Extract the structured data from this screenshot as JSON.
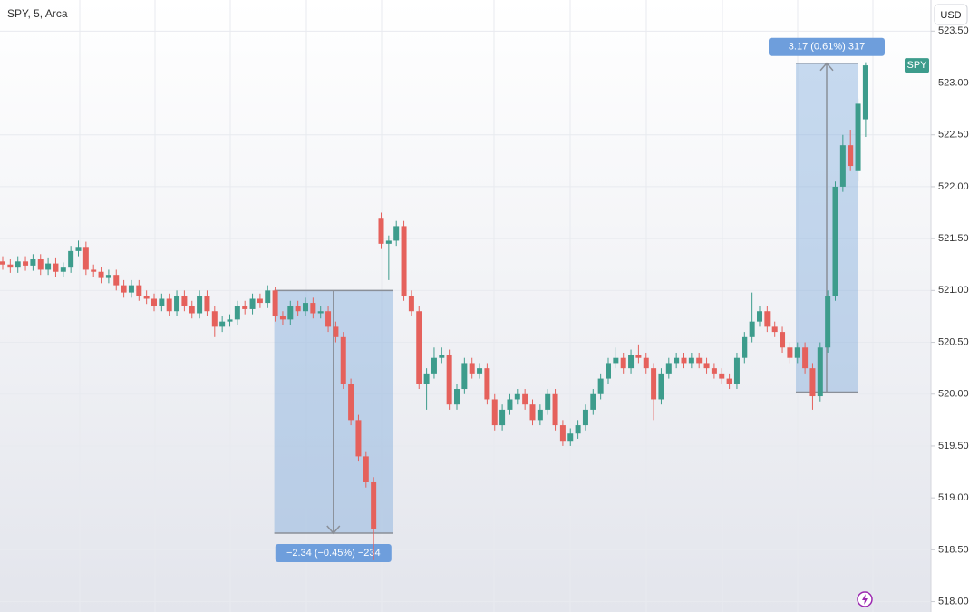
{
  "chart_data": {
    "type": "candlestick",
    "title": "SPY, 5, Arca",
    "currency": "USD",
    "series": [
      {
        "name": "SPY",
        "up_color": "#3d9c8c",
        "down_color": "#e5615c",
        "open": [
          521.28,
          521.25,
          521.22,
          521.28,
          521.24,
          521.3,
          521.2,
          521.26,
          521.18,
          521.22,
          521.38,
          521.42,
          521.2,
          521.18,
          521.12,
          521.15,
          521.05,
          520.98,
          521.05,
          520.95,
          520.92,
          520.85,
          520.92,
          520.8,
          520.95,
          520.85,
          520.78,
          520.95,
          520.8,
          520.65,
          520.7,
          520.72,
          520.85,
          520.82,
          520.92,
          520.88,
          521.0,
          520.75,
          520.72,
          520.85,
          520.8,
          520.88,
          520.78,
          520.8,
          520.65,
          520.55,
          520.1,
          519.75,
          519.4,
          519.15,
          521.7,
          521.45,
          521.48,
          521.62,
          520.95,
          520.8,
          520.1,
          520.2,
          520.35,
          520.38,
          519.9,
          520.05,
          520.3,
          520.2,
          520.25,
          519.95,
          519.7,
          519.85,
          519.95,
          520.0,
          519.9,
          519.75,
          519.85,
          520.0,
          519.7,
          519.55,
          519.62,
          519.7,
          519.85,
          520.0,
          520.15,
          520.3,
          520.35,
          520.25,
          520.38,
          520.35,
          520.25,
          519.95,
          520.2,
          520.3,
          520.35,
          520.3,
          520.35,
          520.3,
          520.25,
          520.2,
          520.15,
          520.1,
          520.35,
          520.55,
          520.7,
          520.8,
          520.65,
          520.6,
          520.45,
          520.35,
          520.45,
          520.25,
          519.98,
          520.45,
          520.95,
          522.0,
          522.4,
          522.15,
          522.65
        ],
        "high": [
          521.33,
          521.3,
          521.33,
          521.33,
          521.35,
          521.35,
          521.31,
          521.31,
          521.27,
          521.43,
          521.48,
          521.47,
          521.25,
          521.23,
          521.2,
          521.2,
          521.1,
          521.1,
          521.1,
          521.0,
          520.97,
          520.97,
          520.97,
          521.0,
          521.0,
          520.9,
          521.0,
          521.0,
          520.85,
          520.75,
          520.77,
          520.9,
          520.9,
          520.97,
          520.97,
          521.05,
          521.03,
          520.8,
          520.9,
          520.9,
          520.93,
          520.93,
          520.85,
          520.85,
          520.7,
          520.6,
          520.15,
          519.8,
          519.45,
          519.2,
          521.75,
          521.53,
          521.67,
          521.67,
          521.0,
          520.85,
          520.25,
          520.45,
          520.45,
          520.43,
          520.1,
          520.35,
          520.35,
          520.3,
          520.3,
          520.0,
          519.9,
          520.0,
          520.05,
          520.05,
          519.95,
          519.9,
          520.05,
          520.05,
          519.75,
          519.67,
          519.75,
          519.9,
          520.05,
          520.2,
          520.35,
          520.45,
          520.4,
          520.43,
          520.48,
          520.4,
          520.3,
          520.25,
          520.35,
          520.4,
          520.4,
          520.4,
          520.4,
          520.35,
          520.3,
          520.25,
          520.2,
          520.4,
          520.6,
          520.98,
          520.85,
          520.85,
          520.7,
          520.65,
          520.5,
          520.5,
          520.5,
          520.3,
          520.5,
          521.0,
          522.05,
          522.5,
          522.55,
          522.85,
          523.2
        ],
        "low": [
          521.2,
          521.17,
          521.17,
          521.19,
          521.19,
          521.15,
          521.15,
          521.13,
          521.13,
          521.17,
          521.33,
          521.15,
          521.13,
          521.07,
          521.07,
          521.0,
          520.93,
          520.93,
          520.9,
          520.87,
          520.8,
          520.8,
          520.75,
          520.75,
          520.8,
          520.73,
          520.73,
          520.75,
          520.55,
          520.6,
          520.65,
          520.67,
          520.77,
          520.77,
          520.83,
          520.83,
          520.7,
          520.67,
          520.67,
          520.75,
          520.75,
          520.73,
          520.73,
          520.6,
          520.5,
          520.05,
          519.7,
          519.35,
          519.1,
          518.4,
          521.4,
          521.1,
          521.43,
          520.9,
          520.75,
          520.05,
          519.85,
          520.15,
          520.3,
          519.85,
          519.85,
          520.0,
          520.15,
          520.15,
          519.9,
          519.65,
          519.65,
          519.8,
          519.9,
          519.85,
          519.7,
          519.7,
          519.8,
          519.65,
          519.5,
          519.5,
          519.57,
          519.65,
          519.8,
          519.95,
          520.1,
          520.25,
          520.2,
          520.2,
          520.3,
          520.2,
          519.75,
          519.9,
          520.15,
          520.25,
          520.25,
          520.25,
          520.25,
          520.2,
          520.15,
          520.1,
          520.05,
          520.05,
          520.3,
          520.5,
          520.65,
          520.6,
          520.55,
          520.4,
          520.3,
          520.3,
          520.2,
          519.85,
          519.93,
          520.4,
          520.9,
          521.95,
          522.15,
          522.05,
          522.48
        ],
        "close": [
          521.25,
          521.22,
          521.28,
          521.24,
          521.3,
          521.2,
          521.26,
          521.18,
          521.22,
          521.38,
          521.42,
          521.2,
          521.18,
          521.12,
          521.15,
          521.05,
          520.98,
          521.05,
          520.95,
          520.92,
          520.85,
          520.92,
          520.8,
          520.95,
          520.85,
          520.78,
          520.95,
          520.8,
          520.65,
          520.7,
          520.72,
          520.85,
          520.82,
          520.92,
          520.88,
          521.0,
          520.75,
          520.72,
          520.85,
          520.8,
          520.88,
          520.78,
          520.8,
          520.65,
          520.55,
          520.1,
          519.75,
          519.4,
          519.15,
          518.7,
          521.45,
          521.48,
          521.62,
          520.95,
          520.8,
          520.1,
          520.2,
          520.35,
          520.38,
          519.9,
          520.05,
          520.3,
          520.2,
          520.25,
          519.95,
          519.7,
          519.85,
          519.95,
          520.0,
          519.9,
          519.75,
          519.85,
          520.0,
          519.7,
          519.55,
          519.62,
          519.7,
          519.85,
          520.0,
          520.15,
          520.3,
          520.35,
          520.25,
          520.38,
          520.35,
          520.25,
          519.95,
          520.2,
          520.3,
          520.35,
          520.3,
          520.35,
          520.3,
          520.25,
          520.2,
          520.15,
          520.1,
          520.35,
          520.55,
          520.7,
          520.8,
          520.65,
          520.6,
          520.45,
          520.35,
          520.45,
          520.25,
          519.98,
          520.45,
          520.95,
          522.0,
          522.4,
          522.2,
          522.8,
          523.17
        ]
      }
    ],
    "ylim": [
      517.9,
      523.8
    ],
    "yticks": [
      {
        "value": 518,
        "label": "518.00"
      },
      {
        "value": 518.5,
        "label": "518.50"
      },
      {
        "value": 519,
        "label": "519.00"
      },
      {
        "value": 519.5,
        "label": "519.50"
      },
      {
        "value": 520,
        "label": "520.00"
      },
      {
        "value": 520.5,
        "label": "520.50"
      },
      {
        "value": 521,
        "label": "521.00"
      },
      {
        "value": 521.5,
        "label": "521.50"
      },
      {
        "value": 522,
        "label": "522.00"
      },
      {
        "value": 522.5,
        "label": "522.50"
      },
      {
        "value": 523,
        "label": "523.00"
      },
      {
        "value": 523.5,
        "label": "523.50"
      }
    ],
    "grid": true,
    "measurements": [
      {
        "label": "−2.34 (−0.45%) −234",
        "from": 521.0,
        "to": 518.66
      },
      {
        "label": "3.17 (0.61%) 317",
        "from": 520.02,
        "to": 523.19
      }
    ]
  }
}
